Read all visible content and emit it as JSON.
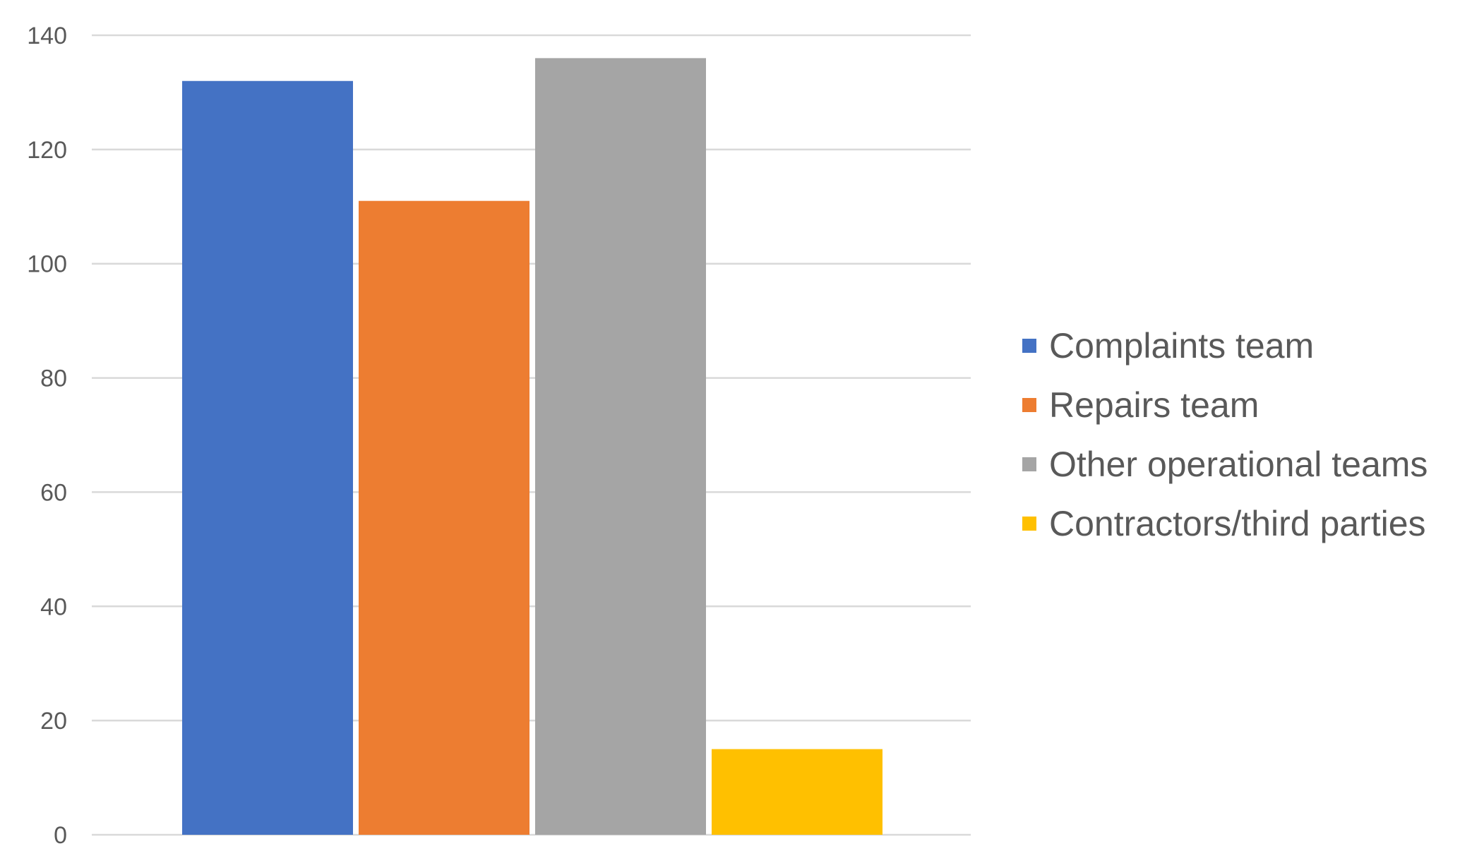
{
  "chart_data": {
    "type": "bar",
    "title": "",
    "xlabel": "",
    "ylabel": "",
    "categories": [
      ""
    ],
    "series": [
      {
        "name": "Complaints team",
        "values": [
          132
        ],
        "color": "#4472C4"
      },
      {
        "name": "Repairs team",
        "values": [
          111
        ],
        "color": "#ED7D31"
      },
      {
        "name": "Other operational teams",
        "values": [
          136
        ],
        "color": "#A5A5A5"
      },
      {
        "name": "Contractors/third parties",
        "values": [
          15
        ],
        "color": "#FFC000"
      }
    ],
    "ylim": [
      0,
      140
    ],
    "yticks": [
      "0",
      "20",
      "40",
      "60",
      "80",
      "100",
      "120",
      "140"
    ],
    "grid": true,
    "legend_position": "right",
    "gridline_color": "#D9D9D9",
    "text_color": "#595959"
  }
}
